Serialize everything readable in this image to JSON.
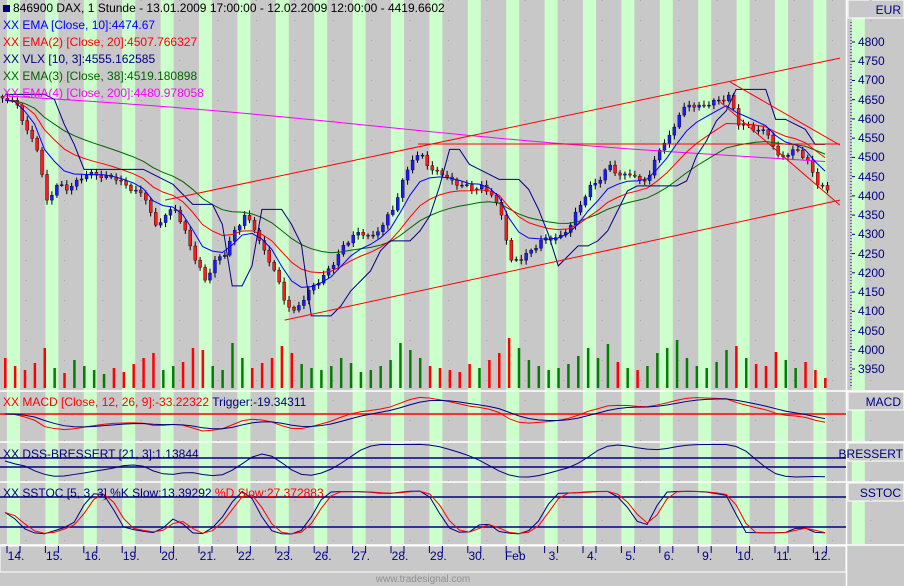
{
  "header": {
    "symbol_icon": "square-marker-icon",
    "title": "846900  DAX, 1 Stunde - 13.01.2009 17:00:00 - 12.02.2009 12:00:00 - 4419.6602"
  },
  "legend": [
    {
      "text": "XX EMA [Close, 10]:4474.67",
      "color": "#0000ff"
    },
    {
      "text": "XX EMA(2) [Close, 20]:4507.766327",
      "color": "#ff0000"
    },
    {
      "text": "XX VLX [10, 3]:4555.162585",
      "color": "#000080"
    },
    {
      "text": "XX EMA(3) [Close, 38]:4519.180898",
      "color": "#006400"
    },
    {
      "text": "XX EMA(4) [Close, 200]:4480.978058",
      "color": "#ff00ff"
    }
  ],
  "panes": {
    "price_label": "EUR",
    "macd_label": "MACD",
    "macd_legend": {
      "main": "XX MACD [Close, 12, 26, 9]:-33.22322",
      "trigger": " Trigger:-19.34311"
    },
    "dss_label": "BRESSERT",
    "dss_legend": "XX DSS-BRESSERT [21, 3]:1.13844",
    "sstoc_label": "SSTOC",
    "sstoc_legend": {
      "k": "XX SSTOC [5, 3, 3] %K Slow:13.39292",
      "d": " %D Slow:27.372883"
    }
  },
  "footer": "www.tradesignal.com",
  "colors": {
    "up": "#1a1aff",
    "down": "#ff1a1a",
    "stripe": "#ccffcc",
    "background": "#c8c8c8",
    "axis": "#000080"
  },
  "chart_data": {
    "type": "candlestick",
    "title": "846900  DAX, 1 Stunde",
    "y_ticks": [
      "4800",
      "4750",
      "4700",
      "4650",
      "4600",
      "4550",
      "4500",
      "4450",
      "4400",
      "4350",
      "4300",
      "4250",
      "4200",
      "4150",
      "4100",
      "4050",
      "4000",
      "3950"
    ],
    "ylim": [
      3930,
      4820
    ],
    "x_labels": [
      "14.",
      "15.",
      "16.",
      "19.",
      "20.",
      "21.",
      "22.",
      "23.",
      "26.",
      "27.",
      "28.",
      "29.",
      "30.",
      "Feb",
      "3.",
      "4.",
      "5.",
      "6.",
      "9.",
      "10.",
      "11.",
      "12."
    ],
    "close": [
      4649,
      4636,
      4571,
      4519,
      4389,
      4428,
      4415,
      4441,
      4454,
      4454,
      4454,
      4441,
      4428,
      4415,
      4389,
      4324,
      4350,
      4363,
      4311,
      4233,
      4181,
      4233,
      4246,
      4311,
      4350,
      4311,
      4259,
      4207,
      4129,
      4103,
      4129,
      4168,
      4194,
      4220,
      4272,
      4298,
      4298,
      4298,
      4324,
      4363,
      4441,
      4493,
      4506,
      4467,
      4454,
      4441,
      4428,
      4415,
      4428,
      4402,
      4350,
      4233,
      4233,
      4259,
      4285,
      4285,
      4298,
      4324,
      4376,
      4428,
      4441,
      4480,
      4454,
      4454,
      4441,
      4454,
      4519,
      4558,
      4610,
      4636,
      4636,
      4636,
      4649,
      4662,
      4584,
      4584,
      4571,
      4558,
      4506,
      4506,
      4519,
      4493,
      4428,
      4415
    ],
    "volume": [
      30,
      22,
      18,
      25,
      40,
      20,
      15,
      28,
      22,
      18,
      14,
      20,
      16,
      24,
      30,
      35,
      18,
      22,
      26,
      40,
      38,
      22,
      18,
      45,
      30,
      20,
      25,
      30,
      42,
      35,
      24,
      20,
      18,
      22,
      30,
      25,
      16,
      18,
      22,
      28,
      45,
      38,
      30,
      22,
      20,
      18,
      16,
      24,
      20,
      28,
      35,
      50,
      40,
      28,
      22,
      18,
      20,
      24,
      32,
      40,
      30,
      44,
      26,
      20,
      18,
      22,
      35,
      40,
      48,
      30,
      22,
      20,
      26,
      38,
      42,
      30,
      24,
      22,
      36,
      28,
      20,
      26,
      18,
      10
    ],
    "trendlines": [
      {
        "from": [
          28.3,
          4077
        ],
        "to": [
          84.5,
          4389
        ]
      },
      {
        "from": [
          16.2,
          4389
        ],
        "to": [
          84.5,
          4758
        ]
      },
      {
        "from": [
          41.8,
          4535
        ],
        "to": [
          84.5,
          4535
        ]
      },
      {
        "from": [
          73.4,
          4696
        ],
        "to": [
          84.5,
          4532
        ]
      },
      {
        "from": [
          72.4,
          4644
        ],
        "to": [
          84.5,
          4376
        ]
      }
    ],
    "indicators": {
      "ema": [
        10,
        20,
        38,
        200
      ],
      "macd": [
        12,
        26,
        9
      ],
      "dss": [
        21,
        3
      ],
      "sstoc": [
        5,
        3,
        3
      ]
    }
  }
}
